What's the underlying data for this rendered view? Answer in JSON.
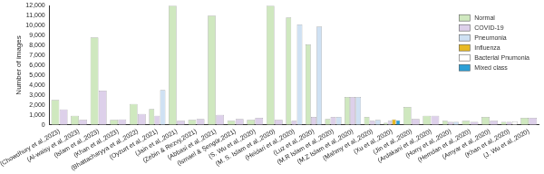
{
  "chart_data": {
    "type": "bar",
    "y_label": "Number of images",
    "categories": [
      "(Chowdhury et al.,2023)",
      "(Al-waisy et al.,2023)",
      "(Islam et al.,2023)",
      "(Khan et al.,2023)",
      "(Bhattacharyya et al.,2022)",
      "(Oyzurt et al.,2021)",
      "(Jain et al.,2021)",
      "(Zebin & Rezvy,2021)",
      "(Abbasi et al.,2021)",
      "(Ismael & Şengür,2021)",
      "(S. Wu et al.,2020)",
      "(M. S. Islam et al.,2020)",
      "(Heidari et al.,2020)",
      "(Luz et al.,2020)",
      "(M.R Islam et al.,2020)",
      "(M.Z Islam et al.,2020)",
      "(Mahmy et al.,2020)",
      "(Xu et al.,2020)",
      "(Jin et al.,2020)",
      "(Ardakani et al.,2020)",
      "(Horry et al.,2020)",
      "(Hemdan et al.,2020)",
      "(Amyar et al.,2020)",
      "(Khan et al.,2020)",
      "(J. Wu et al.,2020)"
    ],
    "series": [
      {
        "name": "Normal",
        "color": "#cfe8bf",
        "values": [
          2500,
          900,
          8800,
          500,
          2100,
          1600,
          12000,
          500,
          11000,
          400,
          500,
          12000,
          10800,
          8100,
          600,
          2800,
          800,
          200,
          1800,
          900,
          400,
          400,
          800,
          300,
          700
        ]
      },
      {
        "name": "COVID-19",
        "color": "#ddd0ea",
        "values": [
          1550,
          500,
          3450,
          550,
          1100,
          900,
          400,
          600,
          1000,
          600,
          700,
          500,
          400,
          800,
          800,
          2800,
          400,
          400,
          600,
          900,
          300,
          300,
          400,
          300,
          700
        ]
      },
      {
        "name": "Pneumonia",
        "color": "#cfe1f3",
        "values": [
          null,
          null,
          null,
          null,
          null,
          3500,
          null,
          null,
          null,
          null,
          null,
          null,
          10100,
          9900,
          800,
          2800,
          500,
          null,
          null,
          null,
          300,
          null,
          null,
          null,
          null
        ]
      },
      {
        "name": "Influenza",
        "color": "#e8b923",
        "values": [
          null,
          null,
          null,
          null,
          null,
          null,
          null,
          null,
          null,
          null,
          null,
          null,
          null,
          null,
          null,
          null,
          null,
          550,
          null,
          null,
          null,
          null,
          null,
          null,
          null
        ]
      },
      {
        "name": "Bacterial Pnumonia",
        "color": "#ffffff",
        "values": [
          null,
          null,
          null,
          null,
          null,
          null,
          null,
          null,
          null,
          null,
          null,
          null,
          null,
          null,
          null,
          null,
          null,
          null,
          null,
          null,
          null,
          null,
          null,
          330,
          null
        ]
      },
      {
        "name": "Mixed class",
        "color": "#2a9fd6",
        "values": [
          null,
          null,
          null,
          null,
          null,
          null,
          null,
          null,
          null,
          null,
          null,
          null,
          null,
          null,
          null,
          null,
          null,
          450,
          null,
          null,
          null,
          null,
          null,
          null,
          null
        ]
      }
    ],
    "ylim": [
      0,
      12000
    ],
    "yticks": [
      0,
      1000,
      2000,
      3000,
      4000,
      5000,
      6000,
      7000,
      8000,
      9000,
      10000,
      11000,
      12000
    ],
    "grid": false,
    "legend": "upper right"
  }
}
